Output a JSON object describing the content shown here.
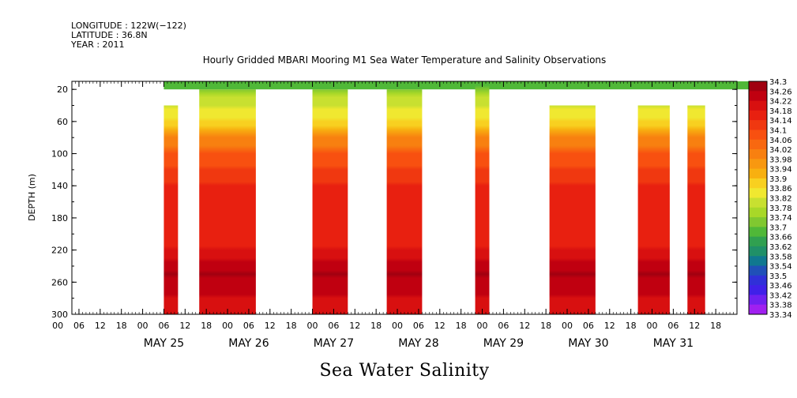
{
  "header": {
    "longitude": "LONGITUDE : 122W(−122)",
    "latitude": "LATITUDE : 36.8N",
    "year": "YEAR : 2011"
  },
  "chart_data": {
    "type": "heatmap",
    "title": "Hourly Gridded MBARI Mooring M1 Sea Water Temperature and Salinity Observations",
    "variable_label": "Sea Water Salinity",
    "ylabel": "DEPTH (m)",
    "ylim": [
      300,
      10
    ],
    "y_reversed": true,
    "y_ticks": [
      20,
      60,
      100,
      140,
      180,
      220,
      260,
      300
    ],
    "x_unit": "hour",
    "x_range_hours": [
      -20,
      168
    ],
    "x_tick_labels": [
      "00",
      "06",
      "12",
      "18",
      "00",
      "06",
      "12",
      "18",
      "00",
      "06",
      "12",
      "18",
      "00",
      "06",
      "12",
      "18",
      "00",
      "06",
      "12",
      "18",
      "00",
      "06",
      "12",
      "18",
      "00",
      "06",
      "12",
      "18",
      "00",
      "06",
      "12",
      "18"
    ],
    "x_tick_hours": [
      -24,
      -18,
      -12,
      -6,
      0,
      6,
      12,
      18,
      24,
      30,
      36,
      42,
      48,
      54,
      60,
      66,
      72,
      78,
      84,
      90,
      96,
      102,
      108,
      114,
      120,
      126,
      132,
      138,
      144,
      150,
      156,
      162
    ],
    "day_labels": [
      "MAY 25",
      "MAY 26",
      "MAY 27",
      "MAY 28",
      "MAY 29",
      "MAY 30",
      "MAY 31"
    ],
    "day_label_hours": [
      6,
      30,
      54,
      78,
      102,
      126,
      150
    ],
    "colorbar": {
      "levels": [
        "34.3",
        "34.26",
        "34.22",
        "34.18",
        "34.14",
        "34.1",
        "34.06",
        "34.02",
        "33.98",
        "33.94",
        "33.9",
        "33.86",
        "33.82",
        "33.78",
        "33.74",
        "33.7",
        "33.66",
        "33.62",
        "33.58",
        "33.54",
        "33.5",
        "33.46",
        "33.42",
        "33.38",
        "33.34"
      ],
      "colors": [
        "#a00010",
        "#c00010",
        "#d81010",
        "#e82010",
        "#f03810",
        "#f85010",
        "#f86810",
        "#f88010",
        "#f89810",
        "#f8b010",
        "#f8d020",
        "#f0e830",
        "#c8e030",
        "#a8d828",
        "#80c830",
        "#50b838",
        "#30a050",
        "#209068",
        "#107890",
        "#2050b8",
        "#3030d8",
        "#4020e8",
        "#7020f0",
        "#a020f0"
      ]
    },
    "profile": [
      {
        "depth": 10,
        "salinity": 33.66
      },
      {
        "depth": 30,
        "salinity": 33.78
      },
      {
        "depth": 60,
        "salinity": 33.86
      },
      {
        "depth": 80,
        "salinity": 33.98
      },
      {
        "depth": 100,
        "salinity": 34.06
      },
      {
        "depth": 140,
        "salinity": 34.14
      },
      {
        "depth": 180,
        "salinity": 34.14
      },
      {
        "depth": 220,
        "salinity": 34.18
      },
      {
        "depth": 250,
        "salinity": 34.26
      },
      {
        "depth": 300,
        "salinity": 34.18
      }
    ],
    "data_segments": [
      {
        "start": 6,
        "end": 10,
        "top_depth": 40
      },
      {
        "start": 16,
        "end": 32,
        "top_depth": 20
      },
      {
        "start": 48,
        "end": 58,
        "top_depth": 20
      },
      {
        "start": 69,
        "end": 79,
        "top_depth": 20
      },
      {
        "start": 94,
        "end": 98,
        "top_depth": 10
      },
      {
        "start": 115,
        "end": 128,
        "top_depth": 40
      },
      {
        "start": 140,
        "end": 149,
        "top_depth": 40
      },
      {
        "start": 154,
        "end": 159,
        "top_depth": 40
      }
    ],
    "surface_band": {
      "start": 6,
      "end": 174,
      "depth_from": 10,
      "depth_to": 20
    }
  }
}
